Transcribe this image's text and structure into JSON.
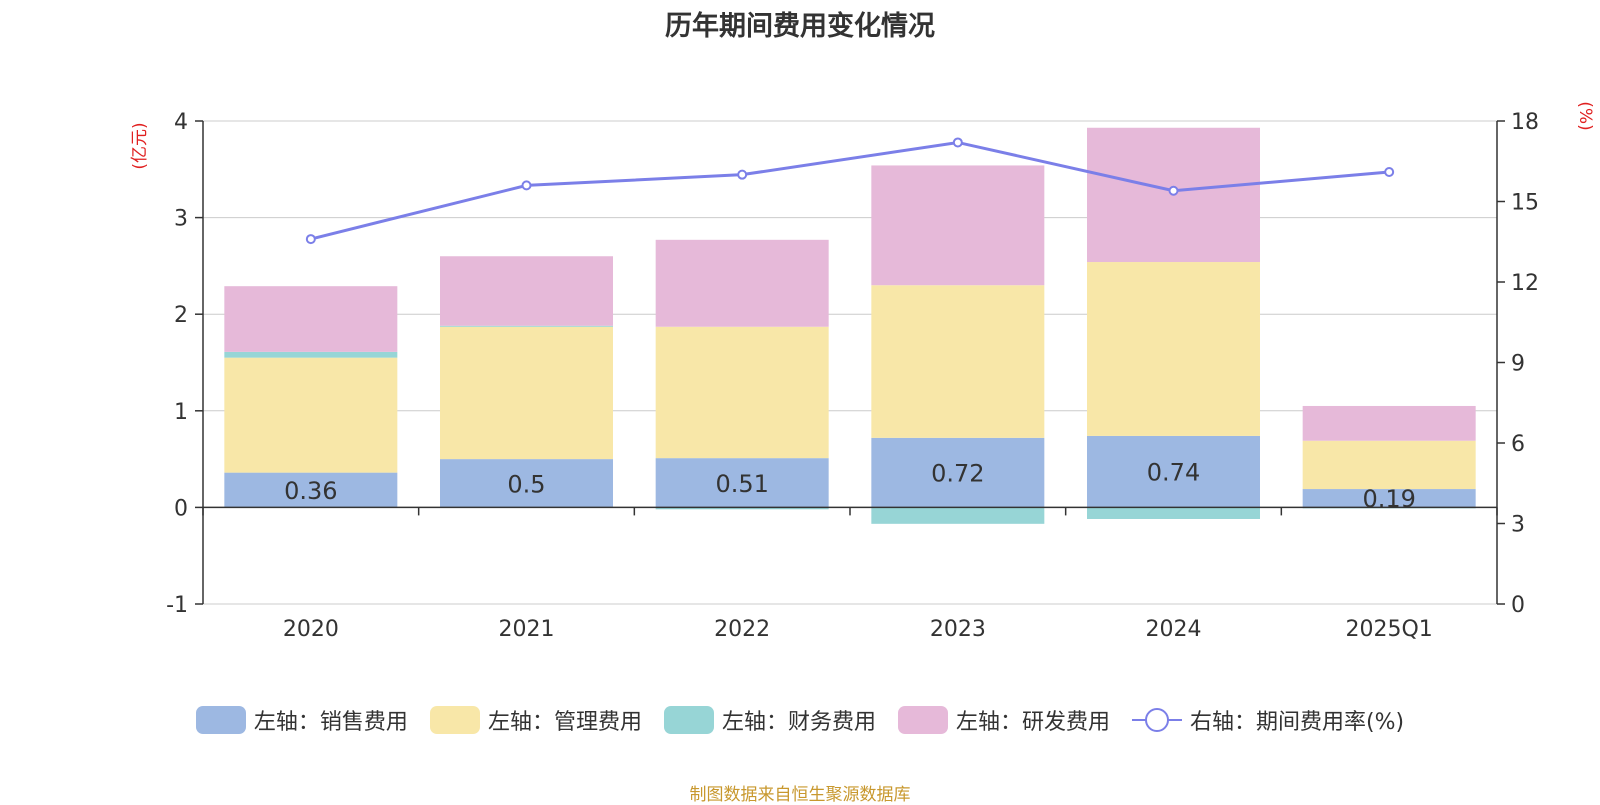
{
  "chart_data": {
    "type": "bar",
    "title": "历年期间费用变化情况",
    "categories": [
      "2020",
      "2021",
      "2022",
      "2023",
      "2024",
      "2025Q1"
    ],
    "left_axis": {
      "unit_label": "(亿元)",
      "ylim": [
        -1,
        4
      ],
      "ticks": [
        "-1",
        "0",
        "1",
        "2",
        "3",
        "4"
      ]
    },
    "right_axis": {
      "unit_label": "(%)",
      "ylim": [
        0,
        18
      ],
      "ticks": [
        "0",
        "3",
        "6",
        "9",
        "12",
        "15",
        "18"
      ]
    },
    "series": [
      {
        "name": "左轴：销售费用",
        "type": "bar",
        "stack": true,
        "color": "#9db8e2",
        "values": [
          0.36,
          0.5,
          0.51,
          0.72,
          0.74,
          0.19
        ],
        "labels": [
          "0.36",
          "0.5",
          "0.51",
          "0.72",
          "0.74",
          "0.19"
        ]
      },
      {
        "name": "左轴：管理费用",
        "type": "bar",
        "stack": true,
        "color": "#f8e7a8",
        "values": [
          1.19,
          1.37,
          1.36,
          1.58,
          1.8,
          0.5
        ]
      },
      {
        "name": "左轴：财务费用",
        "type": "bar",
        "stack": true,
        "color": "#97d5d6",
        "values": [
          0.06,
          0.01,
          -0.02,
          -0.17,
          -0.12,
          -0.01
        ]
      },
      {
        "name": "左轴：研发费用",
        "type": "bar",
        "stack": true,
        "color": "#e6b9d9",
        "values": [
          0.68,
          0.72,
          0.9,
          1.24,
          1.39,
          0.36
        ]
      },
      {
        "name": "右轴：期间费用率(%)",
        "type": "line",
        "axis": "right",
        "color": "#7b7fe8",
        "values": [
          13.6,
          15.6,
          16.0,
          17.2,
          15.4,
          16.1
        ]
      }
    ],
    "legend_position": "bottom",
    "grid": true
  },
  "source_text": "制图数据来自恒生聚源数据库"
}
